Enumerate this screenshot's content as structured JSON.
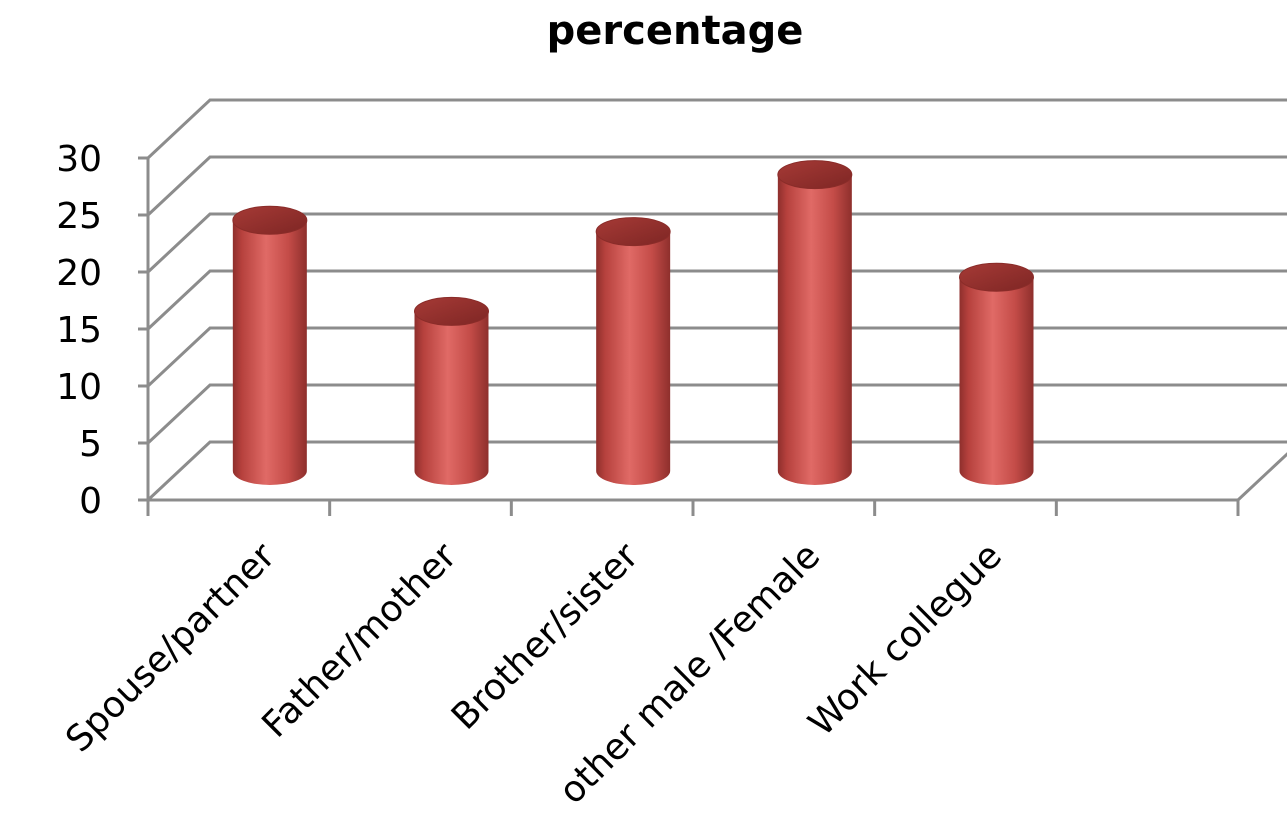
{
  "chart_data": {
    "type": "bar",
    "title": "percentage",
    "xlabel": "",
    "ylabel": "",
    "ylim": [
      0,
      30
    ],
    "yticks": [
      0,
      5,
      10,
      15,
      20,
      25,
      30
    ],
    "categories": [
      "Spouse/partner",
      "Father/mother",
      "Brother/sister",
      "other male /Female",
      "Work collegue"
    ],
    "values": [
      22,
      14,
      21,
      26,
      17
    ],
    "grid": true,
    "legend": "none",
    "colors": {
      "bar": "#c0504d",
      "bar_light": "#e06a66",
      "bar_dark": "#8e2f2c",
      "grid": "#8c8c8c"
    }
  }
}
